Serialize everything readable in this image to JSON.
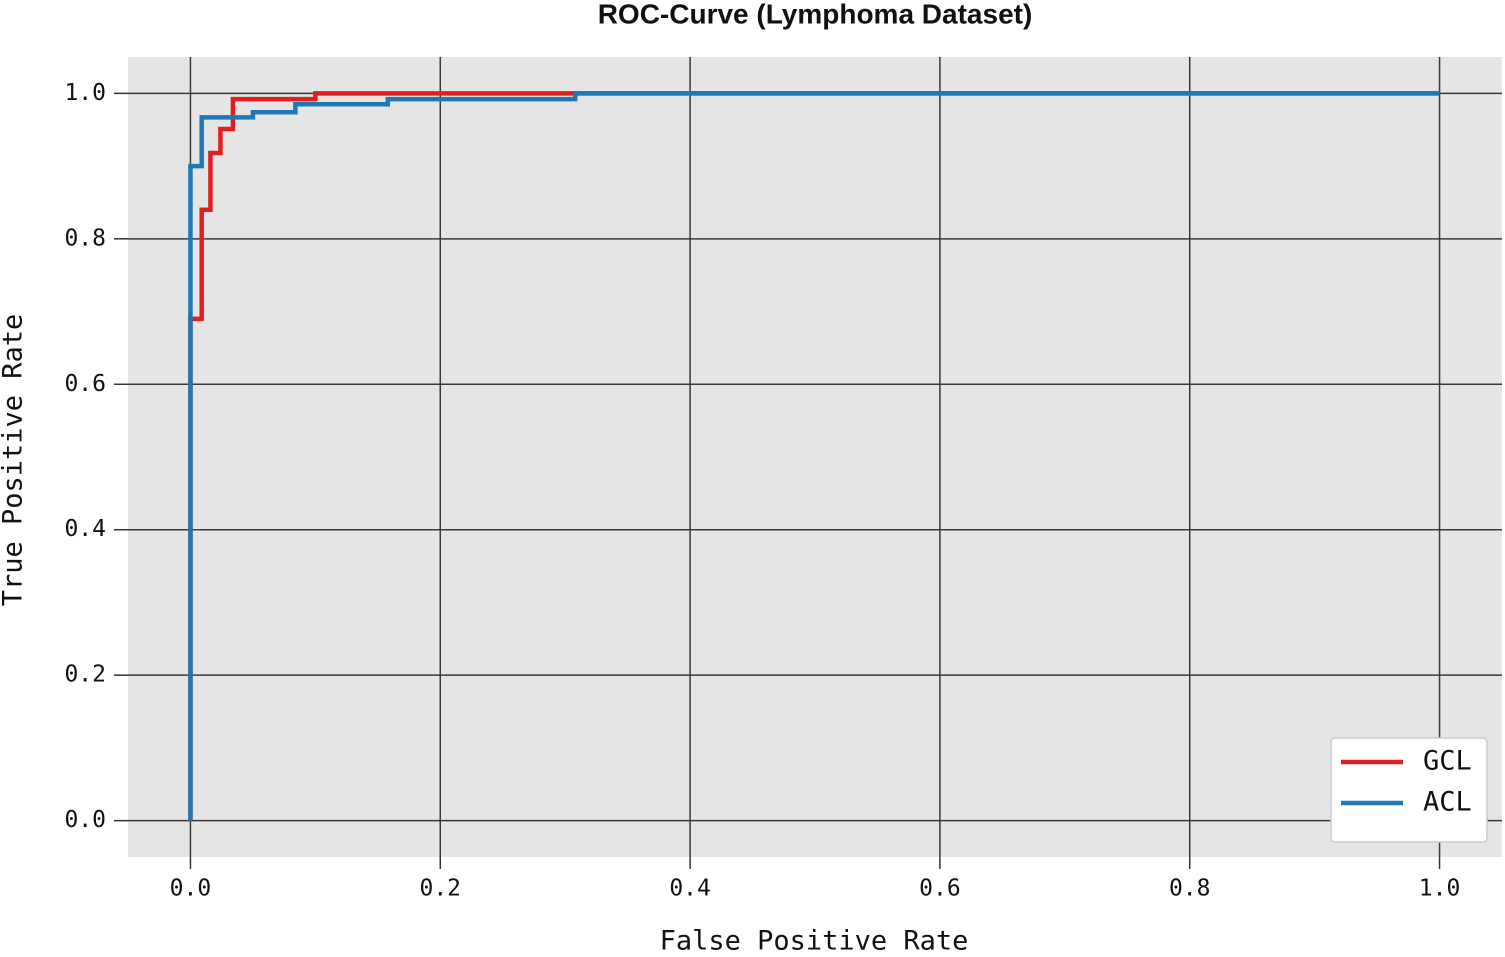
{
  "chart_data": {
    "type": "line",
    "title": "ROC-Curve (Lymphoma Dataset)",
    "x_label": "False Positive Rate",
    "y_label": "True Positive Rate",
    "series": [
      {
        "name": "GCL",
        "color": "#e0201f",
        "x": [
          0,
          0,
          0.009,
          0.009,
          0.016,
          0.016,
          0.024,
          0.024,
          0.034,
          0.034,
          0.1,
          0.1,
          1.0
        ],
        "values": [
          0,
          0.69,
          0.69,
          0.84,
          0.84,
          0.918,
          0.918,
          0.951,
          0.951,
          0.992,
          0.992,
          1.0,
          1.0
        ]
      },
      {
        "name": "ACL",
        "color": "#1f77b4",
        "x": [
          0,
          0,
          0.009,
          0.009,
          0.05,
          0.05,
          0.084,
          0.084,
          0.158,
          0.158,
          0.308,
          0.308,
          1.0
        ],
        "values": [
          0,
          0.9,
          0.9,
          0.967,
          0.967,
          0.974,
          0.974,
          0.985,
          0.985,
          0.992,
          0.992,
          1.0,
          1.0
        ]
      }
    ],
    "xlim": [
      -0.05,
      1.05
    ],
    "ylim": [
      -0.05,
      1.05
    ],
    "xticks": [
      {
        "value": 0,
        "label": "0.0"
      },
      0.2,
      0.4,
      0.6,
      0.8,
      {
        "value": 1,
        "label": "1.0"
      }
    ],
    "yticks": [
      {
        "value": 0,
        "label": "0.0"
      },
      0.2,
      0.4,
      0.6,
      0.8,
      {
        "value": 1,
        "label": "1.0"
      }
    ],
    "grid": true,
    "legend": "lower right"
  }
}
